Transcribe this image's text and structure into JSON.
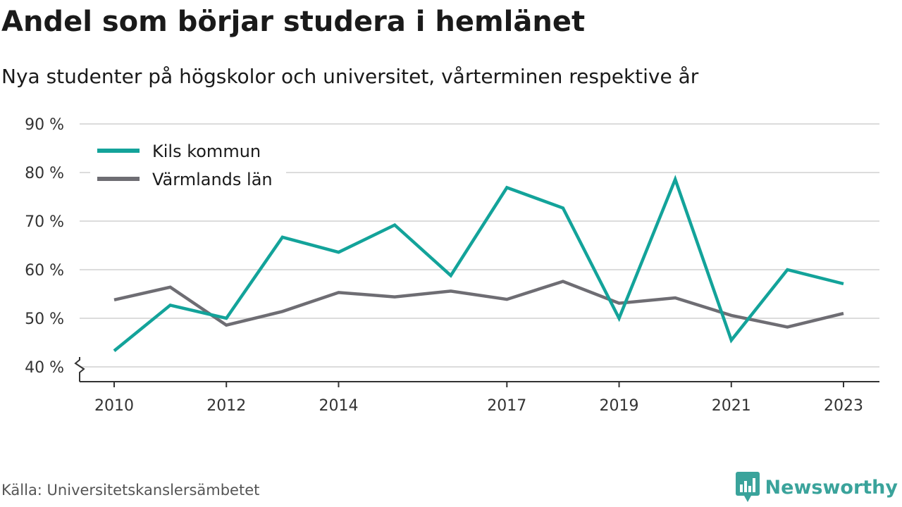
{
  "header": {
    "title": "Andel som börjar studera i hemlänet",
    "subtitle": "Nya studenter på högskolor och universitet, vårterminen respektive år"
  },
  "footer": {
    "source": "Källa: Universitetskanslersämbetet",
    "brand": "Newsworthy",
    "brand_icon": "bar-chart-logo-icon"
  },
  "colors": {
    "kils": "#13a39a",
    "varmland": "#6e6d73",
    "grid": "#dcdcdc",
    "brand": "#3aa39b"
  },
  "chart_data": {
    "type": "line",
    "x": [
      2010,
      2011,
      2012,
      2013,
      2014,
      2015,
      2016,
      2017,
      2018,
      2019,
      2020,
      2021,
      2022,
      2023
    ],
    "series": [
      {
        "name": "Kils kommun",
        "values": [
          43.3,
          52.7,
          50.0,
          66.7,
          63.6,
          69.2,
          58.8,
          76.9,
          72.7,
          50.0,
          78.6,
          45.5,
          60.0,
          57.1
        ]
      },
      {
        "name": "Värmlands län",
        "values": [
          53.8,
          56.4,
          48.6,
          51.4,
          55.3,
          54.4,
          55.6,
          53.9,
          57.6,
          53.1,
          54.2,
          50.6,
          48.2,
          51.0
        ]
      }
    ],
    "y_ticks": [
      "40 %",
      "50 %",
      "60 %",
      "70 %",
      "80 %",
      "90 %"
    ],
    "y_tick_values": [
      40,
      50,
      60,
      70,
      80,
      90
    ],
    "x_ticks": [
      "2010",
      "2012",
      "2014",
      "2017",
      "2019",
      "2021",
      "2023"
    ],
    "x_tick_values": [
      2010,
      2012,
      2014,
      2017,
      2019,
      2021,
      2023
    ],
    "ylim": [
      40,
      90
    ],
    "xlim": [
      2010,
      2023
    ],
    "grid": true,
    "legend_position": "top-left",
    "axis_break": true
  }
}
